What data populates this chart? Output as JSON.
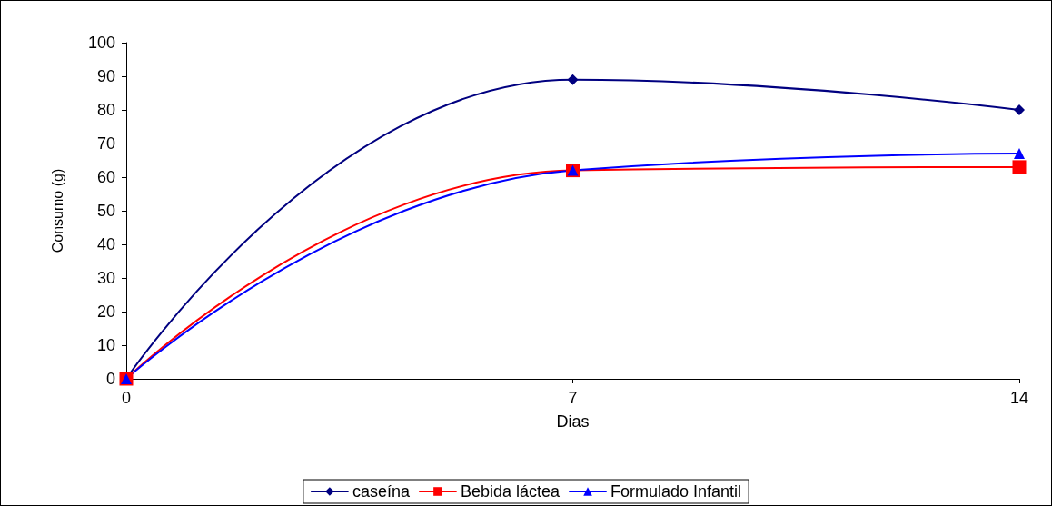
{
  "chart_data": {
    "type": "line",
    "xlabel": "Dias",
    "ylabel": "Consumo (g)",
    "x": [
      0,
      7,
      14
    ],
    "xlim": [
      0,
      14
    ],
    "xticks": [
      0,
      7,
      14
    ],
    "ylim": [
      0,
      100
    ],
    "yticks": [
      0,
      10,
      20,
      30,
      40,
      50,
      60,
      70,
      80,
      90,
      100
    ],
    "grid": false,
    "legend": "bottom",
    "line_style": "solid",
    "series": [
      {
        "name": "caseína",
        "color": "#000080",
        "marker": "diamond",
        "values": [
          0,
          89,
          80
        ]
      },
      {
        "name": "Bebida láctea",
        "color": "#ff0000",
        "marker": "square",
        "values": [
          0,
          62,
          63
        ]
      },
      {
        "name": "Formulado Infantil",
        "color": "#0000ff",
        "marker": "triangle",
        "values": [
          0,
          62,
          67
        ]
      }
    ]
  }
}
